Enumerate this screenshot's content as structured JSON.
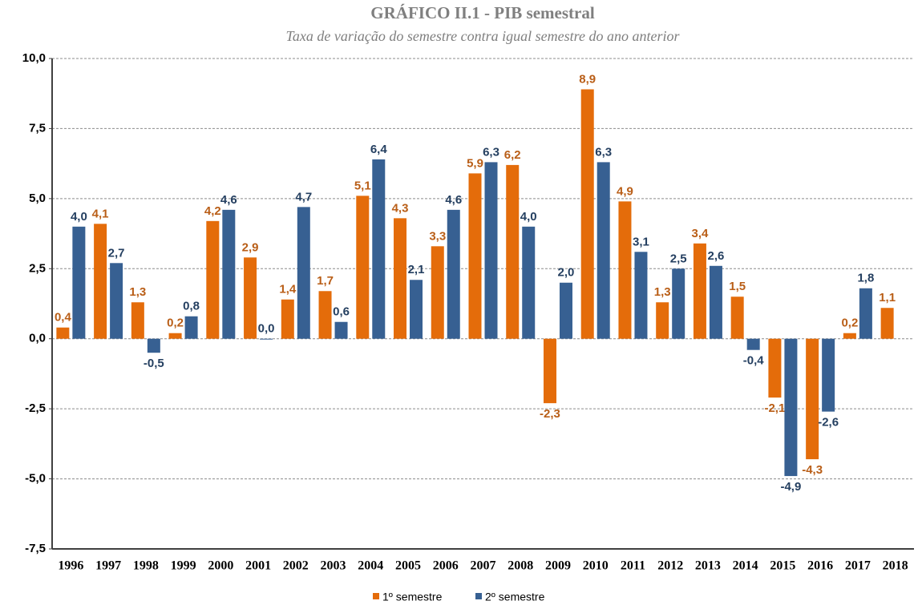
{
  "chart_data": {
    "type": "bar",
    "title": "GRÁFICO II.1 - PIB semestral",
    "subtitle": "Taxa de variação do semestre contra igual semestre do ano anterior",
    "categories": [
      "1996",
      "1997",
      "1998",
      "1999",
      "2000",
      "2001",
      "2002",
      "2003",
      "2004",
      "2005",
      "2006",
      "2007",
      "2008",
      "2009",
      "2010",
      "2011",
      "2012",
      "2013",
      "2014",
      "2015",
      "2016",
      "2017",
      "2018"
    ],
    "series": [
      {
        "name": "1º semestre",
        "color": "#e46c0a",
        "label_color": "#b95e17",
        "values": [
          0.4,
          4.1,
          1.3,
          0.2,
          4.2,
          2.9,
          1.4,
          1.7,
          5.1,
          4.3,
          3.3,
          5.9,
          6.2,
          -2.3,
          8.9,
          4.9,
          1.3,
          3.4,
          1.5,
          -2.1,
          -4.3,
          0.2,
          1.1
        ],
        "value_labels": [
          "0,4",
          "4,1",
          "1,3",
          "0,2",
          "4,2",
          "2,9",
          "1,4",
          "1,7",
          "5,1",
          "4,3",
          "3,3",
          "5,9",
          "6,2",
          "-2,3",
          "8,9",
          "4,9",
          "1,3",
          "3,4",
          "1,5",
          "-2,1",
          "-4,3",
          "0,2",
          "1,1"
        ]
      },
      {
        "name": "2º semestre",
        "color": "#376092",
        "label_color": "#243f60",
        "values": [
          4.0,
          2.7,
          -0.5,
          0.8,
          4.6,
          0.0,
          4.7,
          0.6,
          6.4,
          2.1,
          4.6,
          6.3,
          4.0,
          2.0,
          6.3,
          3.1,
          2.5,
          2.6,
          -0.4,
          -4.9,
          -2.6,
          1.8,
          null
        ],
        "value_labels": [
          "4,0",
          "2,7",
          "-0,5",
          "0,8",
          "4,6",
          "0,0",
          "4,7",
          "0,6",
          "6,4",
          "2,1",
          "4,6",
          "6,3",
          "4,0",
          "2,0",
          "6,3",
          "3,1",
          "2,5",
          "2,6",
          "-0,4",
          "-4,9",
          "-2,6",
          "1,8",
          null
        ]
      }
    ],
    "ylim": [
      -7.5,
      10
    ],
    "yticks": [
      {
        "value": -7.5,
        "label": "-7,5"
      },
      {
        "value": -5,
        "label": "-5,0"
      },
      {
        "value": -2.5,
        "label": "-2,5"
      },
      {
        "value": 0,
        "label": "0,0"
      },
      {
        "value": 2.5,
        "label": "2,5"
      },
      {
        "value": 5,
        "label": "5,0"
      },
      {
        "value": 7.5,
        "label": "7,5"
      },
      {
        "value": 10,
        "label": "10,0"
      }
    ],
    "grid": true,
    "legend": "bottom"
  }
}
